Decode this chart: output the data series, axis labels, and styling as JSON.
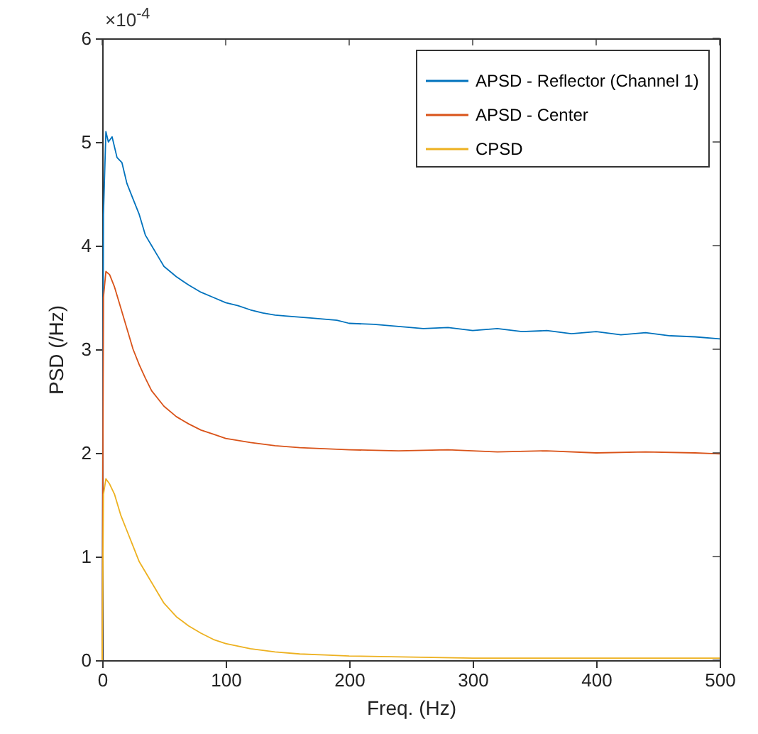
{
  "chart_data": {
    "type": "line",
    "xlabel": "Freq. (Hz)",
    "ylabel": "PSD (/Hz)",
    "annotations": [
      "×10$^{-4}$"
    ],
    "xlim": [
      0,
      500
    ],
    "ylim": [
      0,
      6
    ],
    "xticks": [
      0,
      100,
      200,
      300,
      400,
      500
    ],
    "yticks": [
      0,
      1,
      2,
      3,
      4,
      5,
      6
    ],
    "grid": false,
    "legend": "top right",
    "marker": "none",
    "line_style": "solid",
    "series": [
      {
        "name": "APSD - Reflector (Channel 1)",
        "color": "#0072bd",
        "x": [
          0,
          1,
          3,
          5,
          8,
          12,
          16,
          20,
          25,
          30,
          35,
          40,
          45,
          50,
          55,
          60,
          70,
          80,
          90,
          100,
          110,
          120,
          130,
          140,
          150,
          170,
          190,
          200,
          220,
          240,
          260,
          280,
          300,
          320,
          340,
          360,
          380,
          400,
          420,
          440,
          460,
          480,
          500
        ],
        "values": [
          0,
          4.3,
          5.1,
          5.0,
          5.05,
          4.85,
          4.8,
          4.6,
          4.45,
          4.3,
          4.1,
          4.0,
          3.9,
          3.8,
          3.75,
          3.7,
          3.62,
          3.55,
          3.5,
          3.45,
          3.42,
          3.38,
          3.35,
          3.33,
          3.32,
          3.3,
          3.28,
          3.25,
          3.24,
          3.22,
          3.2,
          3.21,
          3.18,
          3.2,
          3.17,
          3.18,
          3.15,
          3.17,
          3.14,
          3.16,
          3.13,
          3.12,
          3.1
        ]
      },
      {
        "name": "APSD - Center",
        "color": "#d95319",
        "x": [
          0,
          1,
          3,
          6,
          10,
          15,
          20,
          25,
          30,
          35,
          40,
          50,
          60,
          70,
          80,
          90,
          100,
          120,
          140,
          160,
          180,
          200,
          240,
          280,
          320,
          360,
          400,
          440,
          480,
          500
        ],
        "values": [
          0,
          3.5,
          3.75,
          3.72,
          3.6,
          3.4,
          3.2,
          3.0,
          2.85,
          2.72,
          2.6,
          2.45,
          2.35,
          2.28,
          2.22,
          2.18,
          2.14,
          2.1,
          2.07,
          2.05,
          2.04,
          2.03,
          2.02,
          2.03,
          2.01,
          2.02,
          2.0,
          2.01,
          2.0,
          1.99
        ]
      },
      {
        "name": "CPSD",
        "color": "#edb120",
        "x": [
          0,
          1,
          3,
          6,
          10,
          15,
          20,
          25,
          30,
          40,
          50,
          60,
          70,
          80,
          90,
          100,
          120,
          140,
          160,
          180,
          200,
          250,
          300,
          400,
          500
        ],
        "values": [
          0,
          1.6,
          1.75,
          1.7,
          1.6,
          1.4,
          1.25,
          1.1,
          0.95,
          0.75,
          0.55,
          0.42,
          0.33,
          0.26,
          0.2,
          0.16,
          0.11,
          0.08,
          0.06,
          0.05,
          0.04,
          0.03,
          0.02,
          0.02,
          0.02
        ]
      }
    ]
  }
}
